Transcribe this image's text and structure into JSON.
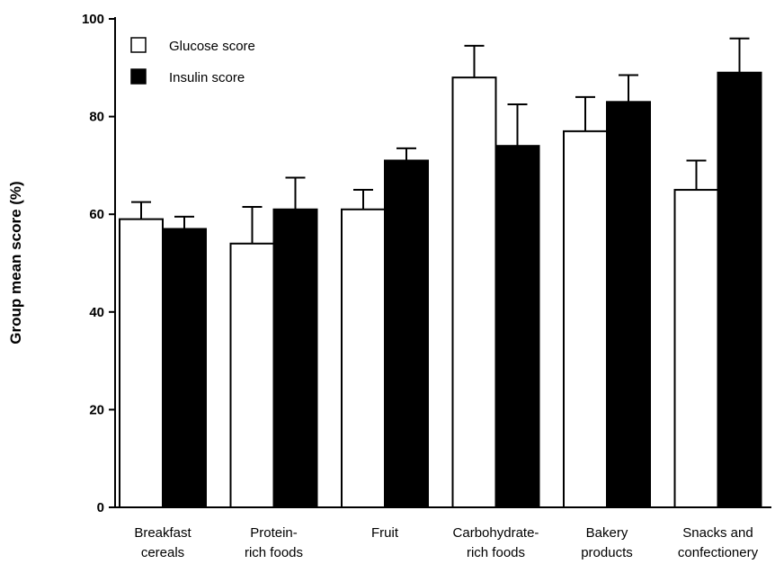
{
  "chart_data": {
    "type": "bar",
    "title": "",
    "xlabel": "",
    "ylabel": "Group mean score (%)",
    "ylim": [
      0,
      100
    ],
    "yticks": [
      0,
      20,
      40,
      60,
      80,
      100
    ],
    "categories": [
      [
        "Breakfast",
        "cereals"
      ],
      [
        "Protein-",
        "rich foods"
      ],
      [
        "Fruit"
      ],
      [
        "Carbohydrate-",
        "rich foods"
      ],
      [
        "Bakery",
        "products"
      ],
      [
        "Snacks and",
        "confectionery"
      ]
    ],
    "series": [
      {
        "name": "Glucose score",
        "color": "#ffffff",
        "values": [
          59,
          54,
          61,
          88,
          77,
          65
        ],
        "errors": [
          3.5,
          7.5,
          4,
          6.5,
          7,
          6
        ]
      },
      {
        "name": "Insulin score",
        "color": "#000000",
        "values": [
          57,
          61,
          71,
          74,
          83,
          89
        ],
        "errors": [
          2.5,
          6.5,
          2.5,
          8.5,
          5.5,
          7
        ]
      }
    ],
    "legend_position": "top-left",
    "grid": false
  }
}
